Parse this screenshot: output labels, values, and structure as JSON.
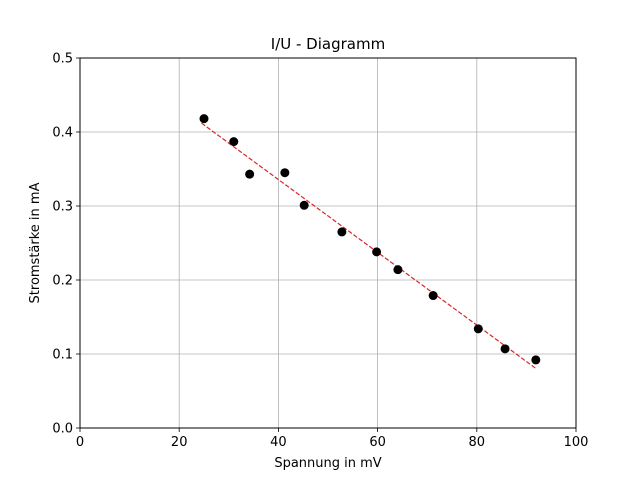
{
  "chart_data": {
    "type": "scatter",
    "title": "I/U - Diagramm",
    "xlabel": "Spannung in mV",
    "ylabel": "Stromstärke in mA",
    "xlim": [
      0,
      100
    ],
    "ylim": [
      0,
      0.5
    ],
    "xticks": [
      0,
      20,
      40,
      60,
      80,
      100
    ],
    "yticks": [
      0.0,
      0.1,
      0.2,
      0.3,
      0.4,
      0.5
    ],
    "xtick_labels": [
      "0",
      "20",
      "40",
      "60",
      "80",
      "100"
    ],
    "ytick_labels": [
      "0.0",
      "0.1",
      "0.2",
      "0.3",
      "0.4",
      "0.5"
    ],
    "grid": true,
    "series": [
      {
        "kind": "scatter",
        "color": "#000000",
        "x": [
          25.0,
          31.0,
          34.2,
          41.3,
          45.2,
          52.8,
          59.8,
          64.1,
          71.2,
          80.3,
          85.7,
          91.9
        ],
        "y": [
          0.418,
          0.387,
          0.343,
          0.345,
          0.301,
          0.265,
          0.238,
          0.214,
          0.179,
          0.134,
          0.107,
          0.092
        ]
      },
      {
        "kind": "trendline",
        "color": "#d62728",
        "linestyle": "dashed",
        "x": [
          24.5,
          92.0
        ],
        "y": [
          0.412,
          0.08
        ]
      }
    ]
  }
}
